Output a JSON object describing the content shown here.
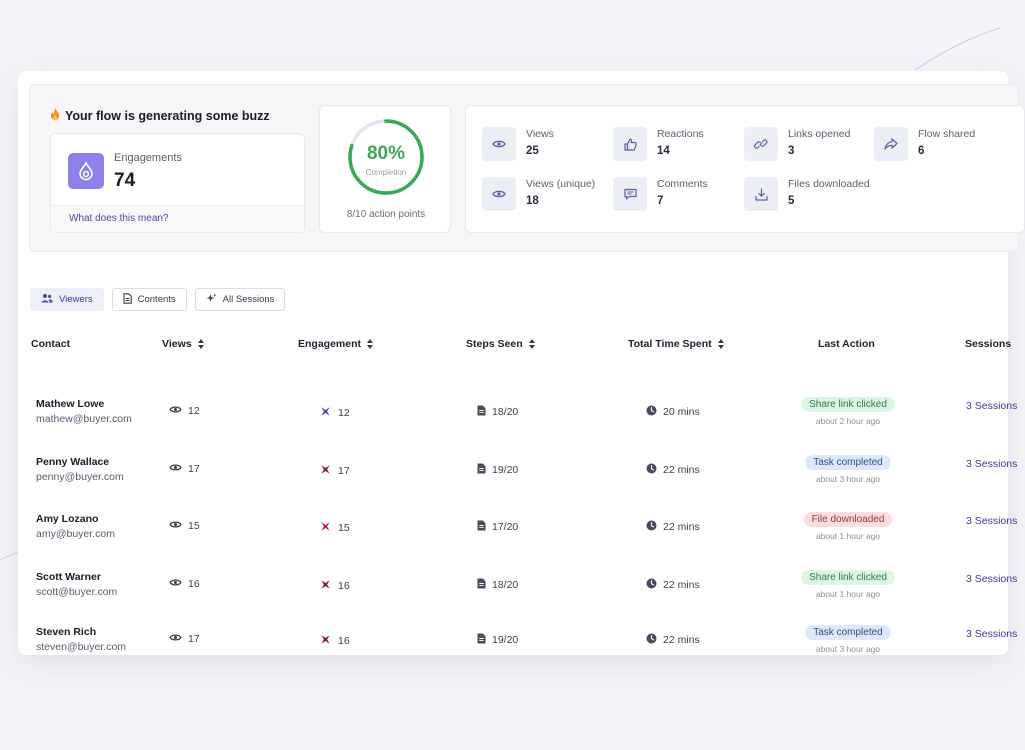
{
  "summary": {
    "title": "Your flow is generating some buzz",
    "engagement": {
      "label": "Engagements",
      "value": "74",
      "link": "What does this mean?"
    },
    "completion": {
      "percent_label": "80%",
      "percent": 80,
      "caption": "Completion",
      "action_points": "8/10 action points"
    },
    "stats": [
      {
        "label": "Views",
        "value": "25",
        "icon": "eye-icon"
      },
      {
        "label": "Reactions",
        "value": "14",
        "icon": "thumbs-up-icon"
      },
      {
        "label": "Links opened",
        "value": "3",
        "icon": "link-icon"
      },
      {
        "label": "Flow shared",
        "value": "6",
        "icon": "share-icon"
      },
      {
        "label": "Views (unique)",
        "value": "18",
        "icon": "eye-icon"
      },
      {
        "label": "Comments",
        "value": "7",
        "icon": "comment-icon"
      },
      {
        "label": "Files downloaded",
        "value": "5",
        "icon": "download-icon"
      }
    ]
  },
  "tabs": [
    {
      "label": "Viewers",
      "icon": "users-icon",
      "active": true
    },
    {
      "label": "Contents",
      "icon": "document-icon",
      "active": false
    },
    {
      "label": "All Sessions",
      "icon": "sparkle-icon",
      "active": false
    }
  ],
  "table": {
    "columns": [
      "Contact",
      "Views",
      "Engagement",
      "Steps Seen",
      "Total Time Spent",
      "Last Action",
      "Sessions"
    ],
    "rows": [
      {
        "name": "Mathew Lowe",
        "email": "mathew@buyer.com",
        "views": "12",
        "engagement": "12",
        "engagement_color": "#4b48b8",
        "steps": "18/20",
        "time": "20 mins",
        "last_action": "Share link clicked",
        "action_tone": "green",
        "action_time": "about 2 hour ago",
        "sessions": "3 Sessions"
      },
      {
        "name": "Penny Wallace",
        "email": "penny@buyer.com",
        "views": "17",
        "engagement": "17",
        "engagement_color": "#7a1f2b",
        "steps": "19/20",
        "time": "22 mins",
        "last_action": "Task completed",
        "action_tone": "blue",
        "action_time": "about 3 hour ago",
        "sessions": "3 Sessions"
      },
      {
        "name": "Amy Lozano",
        "email": "amy@buyer.com",
        "views": "15",
        "engagement": "15",
        "engagement_color": "#b3263c",
        "steps": "17/20",
        "time": "22 mins",
        "last_action": "File downloaded",
        "action_tone": "red",
        "action_time": "about 1 hour ago",
        "sessions": "3 Sessions"
      },
      {
        "name": "Scott Warner",
        "email": "scott@buyer.com",
        "views": "16",
        "engagement": "16",
        "engagement_color": "#7a1f2b",
        "steps": "18/20",
        "time": "22 mins",
        "last_action": "Share link clicked",
        "action_tone": "green",
        "action_time": "about 1 hour ago",
        "sessions": "3 Sessions"
      },
      {
        "name": "Steven Rich",
        "email": "steven@buyer.com",
        "views": "17",
        "engagement": "16",
        "engagement_color": "#7a1f2b",
        "steps": "19/20",
        "time": "22 mins",
        "last_action": "Task completed",
        "action_tone": "blue",
        "action_time": "about 3 hour ago",
        "sessions": "3 Sessions"
      }
    ]
  },
  "colors": {
    "accent": "#8d80ea",
    "completion_green": "#3aa857",
    "link": "#3a3a9a"
  }
}
